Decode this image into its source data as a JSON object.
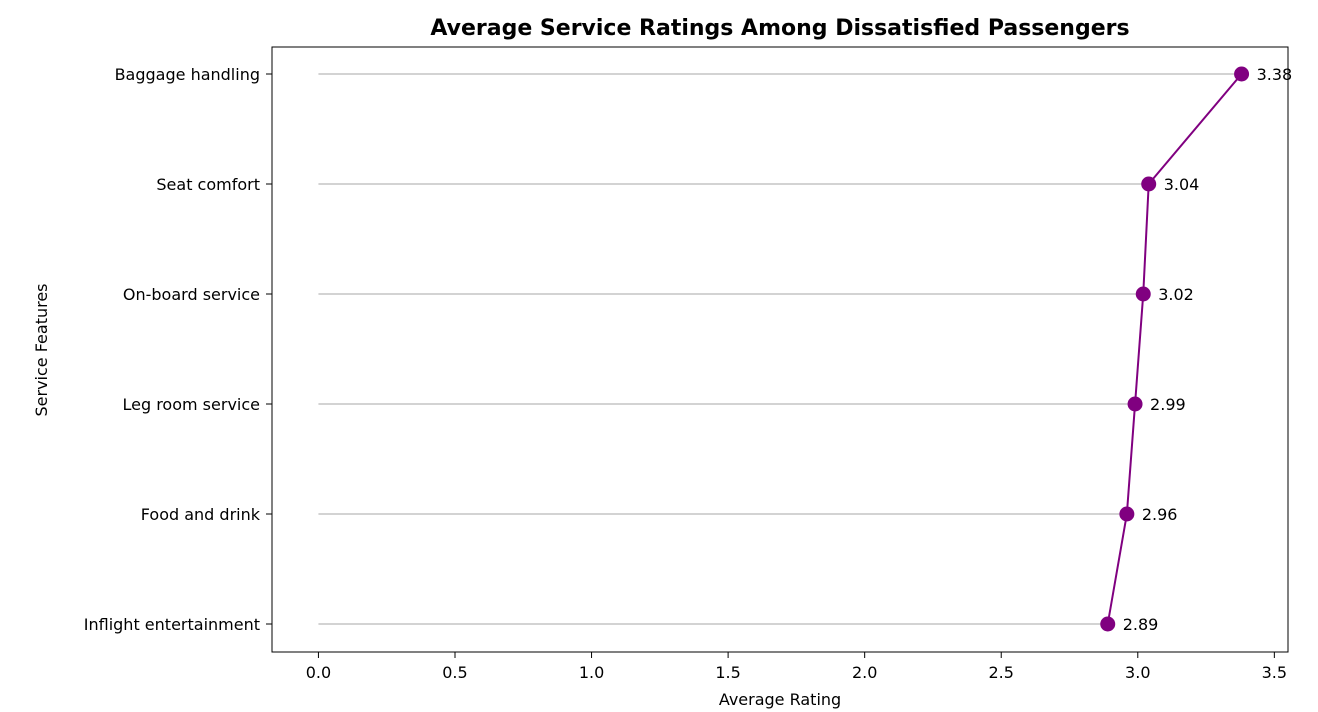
{
  "chart_data": {
    "type": "line",
    "orientation": "horizontal",
    "title": "Average Service Ratings Among Dissatisfied Passengers",
    "xlabel": "Average Rating",
    "ylabel": "Service Features",
    "categories": [
      "Baggage handling",
      "Seat comfort",
      "On-board service",
      "Leg room service",
      "Food and drink",
      "Inflight entertainment"
    ],
    "values": [
      3.38,
      3.04,
      3.02,
      2.99,
      2.96,
      2.89
    ],
    "value_labels": [
      "3.38",
      "3.04",
      "3.02",
      "2.99",
      "2.96",
      "2.89"
    ],
    "xlim": [
      -0.17,
      3.55
    ],
    "xticks": [
      0.0,
      0.5,
      1.0,
      1.5,
      2.0,
      2.5,
      3.0,
      3.5
    ],
    "xtick_labels": [
      "0.0",
      "0.5",
      "1.0",
      "1.5",
      "2.0",
      "2.5",
      "3.0",
      "3.5"
    ],
    "stem_color": "#d3d3d3",
    "marker_color": "#800080",
    "line_color": "#800080",
    "grid": false,
    "legend": "none"
  }
}
